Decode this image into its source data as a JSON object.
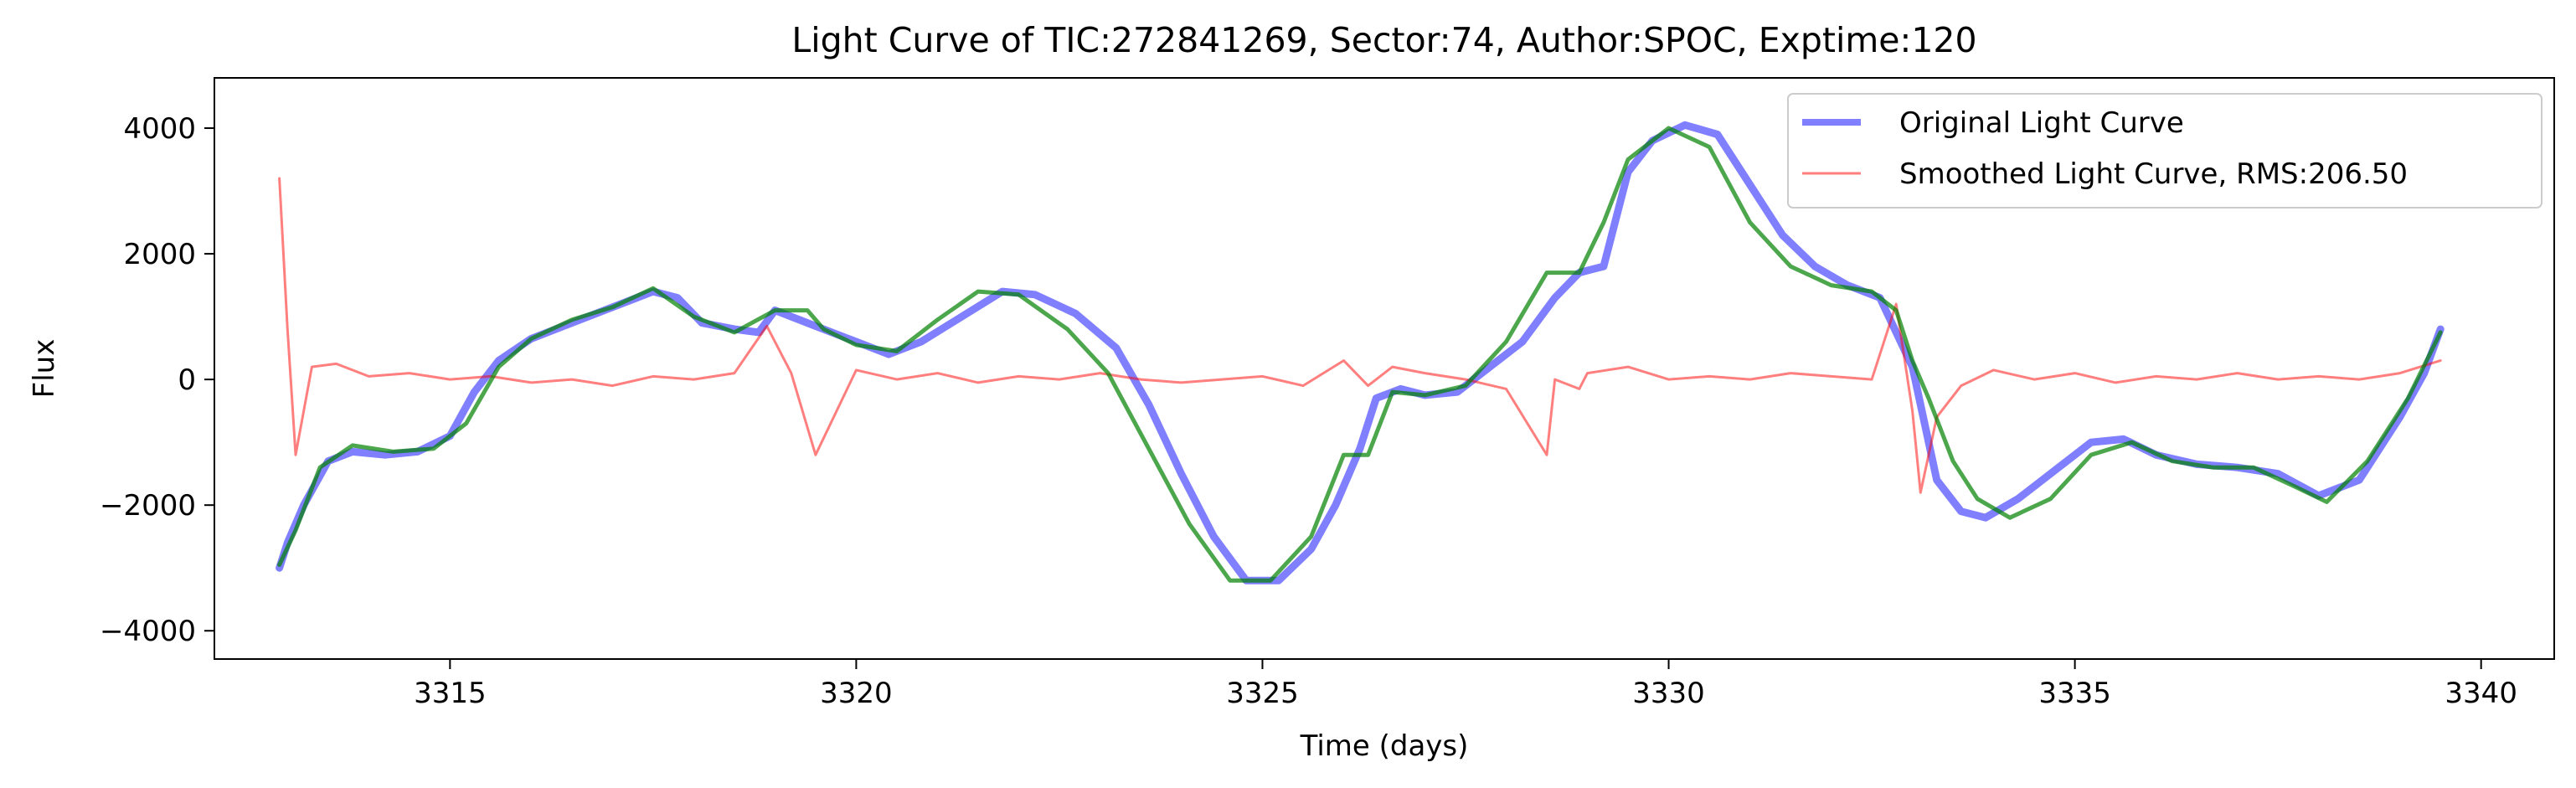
{
  "chart_data": {
    "type": "line",
    "title": "Light Curve of TIC:272841269, Sector:74, Author:SPOC, Exptime:120",
    "xlabel": "Time (days)",
    "ylabel": "Flux",
    "xlim": [
      3312.1,
      3340.9
    ],
    "ylim": [
      -4450,
      4800
    ],
    "x_ticks": [
      3315,
      3320,
      3325,
      3330,
      3335,
      3340
    ],
    "x_tick_labels": [
      "3315",
      "3320",
      "3325",
      "3330",
      "3335",
      "3340"
    ],
    "y_ticks": [
      -4000,
      -2000,
      0,
      2000,
      4000
    ],
    "y_tick_labels": [
      "−4000",
      "−2000",
      "0",
      "2000",
      "4000"
    ],
    "grid": false,
    "legend_position": "top-right",
    "colors": {
      "original": "#0000ff",
      "smoothed": "#ff0000",
      "trend": "#008000"
    },
    "series": [
      {
        "name": "Original Light Curve",
        "x": [
          3312.9,
          3313.0,
          3313.2,
          3313.5,
          3313.8,
          3314.2,
          3314.6,
          3315.0,
          3315.3,
          3315.6,
          3316.0,
          3316.5,
          3317.0,
          3317.5,
          3317.8,
          3318.1,
          3318.5,
          3318.8,
          3319.0,
          3319.5,
          3320.0,
          3320.4,
          3320.8,
          3321.3,
          3321.8,
          3322.2,
          3322.7,
          3323.2,
          3323.6,
          3324.0,
          3324.4,
          3324.8,
          3325.2,
          3325.6,
          3325.9,
          3326.2,
          3326.4,
          3326.7,
          3327.0,
          3327.4,
          3327.8,
          3328.2,
          3328.6,
          3328.9,
          3329.2,
          3329.5,
          3329.8,
          3330.2,
          3330.6,
          3331.0,
          3331.4,
          3331.8,
          3332.2,
          3332.6,
          3333.0,
          3333.3,
          3333.6,
          3333.9,
          3334.3,
          3334.8,
          3335.2,
          3335.6,
          3336.0,
          3336.5,
          3337.0,
          3337.5,
          3338.0,
          3338.5,
          3339.0,
          3339.3,
          3339.5
        ],
        "y": [
          -3000,
          -2600,
          -2000,
          -1300,
          -1150,
          -1200,
          -1150,
          -900,
          -200,
          300,
          650,
          900,
          1150,
          1400,
          1300,
          900,
          800,
          750,
          1100,
          850,
          600,
          400,
          600,
          1000,
          1400,
          1350,
          1050,
          500,
          -400,
          -1500,
          -2500,
          -3200,
          -3200,
          -2700,
          -2000,
          -1100,
          -300,
          -150,
          -250,
          -200,
          200,
          600,
          1300,
          1700,
          1800,
          3300,
          3800,
          4050,
          3900,
          3100,
          2300,
          1800,
          1500,
          1300,
          200,
          -1600,
          -2100,
          -2200,
          -1900,
          -1400,
          -1000,
          -950,
          -1200,
          -1350,
          -1400,
          -1500,
          -1850,
          -1600,
          -600,
          100,
          800
        ]
      },
      {
        "name": "Smoothed Light Curve, RMS:206.50",
        "x": [
          3312.9,
          3313.0,
          3313.1,
          3313.3,
          3313.6,
          3314.0,
          3314.5,
          3315.0,
          3315.5,
          3316.0,
          3316.5,
          3317.0,
          3317.5,
          3318.0,
          3318.5,
          3318.9,
          3319.2,
          3319.5,
          3320.0,
          3320.5,
          3321.0,
          3321.5,
          3322.0,
          3322.5,
          3323.0,
          3323.5,
          3324.0,
          3324.5,
          3325.0,
          3325.5,
          3326.0,
          3326.3,
          3326.6,
          3327.0,
          3327.5,
          3328.0,
          3328.5,
          3328.6,
          3328.9,
          3329.0,
          3329.5,
          3330.0,
          3330.5,
          3331.0,
          3331.5,
          3332.0,
          3332.5,
          3332.8,
          3333.0,
          3333.1,
          3333.3,
          3333.6,
          3334.0,
          3334.5,
          3335.0,
          3335.5,
          3336.0,
          3336.5,
          3337.0,
          3337.5,
          3338.0,
          3338.5,
          3339.0,
          3339.5
        ],
        "y": [
          3200,
          800,
          -1200,
          200,
          250,
          50,
          100,
          0,
          50,
          -50,
          0,
          -100,
          50,
          0,
          100,
          850,
          100,
          -1200,
          150,
          0,
          100,
          -50,
          50,
          0,
          100,
          0,
          -50,
          0,
          50,
          -100,
          300,
          -100,
          200,
          100,
          0,
          -150,
          -1200,
          0,
          -150,
          100,
          200,
          0,
          50,
          0,
          100,
          50,
          0,
          1200,
          -500,
          -1800,
          -600,
          -100,
          150,
          0,
          100,
          -50,
          50,
          0,
          100,
          0,
          50,
          0,
          100,
          300
        ]
      },
      {
        "name": "",
        "x": [
          3312.9,
          3313.1,
          3313.4,
          3313.8,
          3314.3,
          3314.8,
          3315.2,
          3315.6,
          3316.0,
          3316.5,
          3317.0,
          3317.5,
          3318.0,
          3318.5,
          3319.0,
          3319.4,
          3319.6,
          3320.0,
          3320.5,
          3321.0,
          3321.5,
          3322.0,
          3322.6,
          3323.1,
          3323.6,
          3324.1,
          3324.6,
          3325.1,
          3325.6,
          3326.0,
          3326.3,
          3326.6,
          3327.0,
          3327.5,
          3328.0,
          3328.5,
          3328.7,
          3328.9,
          3329.2,
          3329.5,
          3330.0,
          3330.5,
          3331.0,
          3331.5,
          3332.0,
          3332.5,
          3332.8,
          3333.0,
          3333.2,
          3333.5,
          3333.8,
          3334.2,
          3334.7,
          3335.2,
          3335.7,
          3336.2,
          3336.7,
          3337.2,
          3337.7,
          3338.1,
          3338.6,
          3339.1,
          3339.5
        ],
        "y": [
          -2950,
          -2400,
          -1400,
          -1050,
          -1150,
          -1100,
          -700,
          200,
          650,
          950,
          1150,
          1450,
          1000,
          750,
          1100,
          1100,
          800,
          550,
          450,
          950,
          1400,
          1350,
          800,
          100,
          -1100,
          -2300,
          -3200,
          -3200,
          -2500,
          -1200,
          -1200,
          -200,
          -250,
          -100,
          600,
          1700,
          1700,
          1700,
          2500,
          3500,
          4000,
          3700,
          2500,
          1800,
          1500,
          1400,
          1100,
          300,
          -300,
          -1300,
          -1900,
          -2200,
          -1900,
          -1200,
          -1000,
          -1300,
          -1400,
          -1400,
          -1700,
          -1950,
          -1300,
          -300,
          750
        ]
      }
    ],
    "legend": [
      {
        "label": "Original Light Curve",
        "style": "thick-line",
        "color": "#0000ff"
      },
      {
        "label": "Smoothed Light Curve, RMS:206.50",
        "style": "thin-line",
        "color": "#ff0000"
      }
    ]
  }
}
